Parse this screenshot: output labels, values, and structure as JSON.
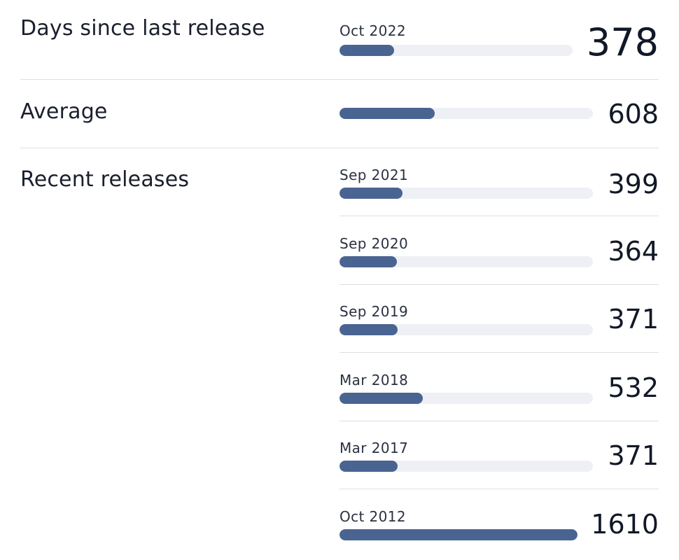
{
  "sections": {
    "current": {
      "label": "Days since last release",
      "entry": {
        "date": "Oct 2022",
        "value": 378,
        "fraction": 0.235
      }
    },
    "average": {
      "label": "Average",
      "entry": {
        "date": "",
        "value": 608,
        "fraction": 0.377
      }
    },
    "recent": {
      "label": "Recent releases",
      "entries": [
        {
          "date": "Sep 2021",
          "value": 399,
          "fraction": 0.248
        },
        {
          "date": "Sep 2020",
          "value": 364,
          "fraction": 0.226
        },
        {
          "date": "Sep 2019",
          "value": 371,
          "fraction": 0.23
        },
        {
          "date": "Mar 2018",
          "value": 532,
          "fraction": 0.33
        },
        {
          "date": "Mar 2017",
          "value": 371,
          "fraction": 0.23
        },
        {
          "date": "Oct 2012",
          "value": 1610,
          "fraction": 1.0
        }
      ]
    }
  },
  "colors": {
    "bar_fill": "#4a6492",
    "bar_track": "#eef0f5",
    "divider": "#dcdfe5"
  }
}
